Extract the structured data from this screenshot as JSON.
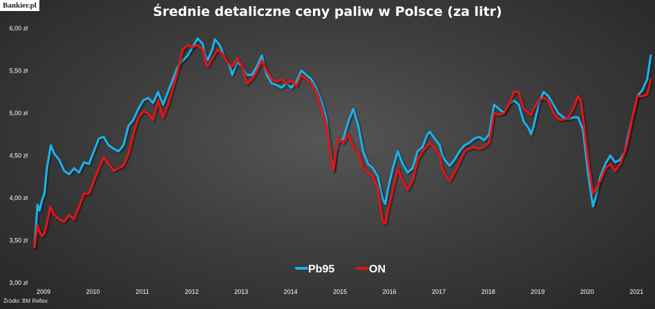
{
  "logo_text": "Bankier.pl",
  "title": "Średnie detaliczne ceny paliw w Polsce (za litr)",
  "source": "Źródło: BM Reflex",
  "colors": {
    "Pb95": "#1ab0ea",
    "ON": "#e01414"
  },
  "chart_data": {
    "type": "line",
    "title": "Średnie detaliczne ceny paliw w Polsce (za litr)",
    "xlabel": "",
    "ylabel": "",
    "xlim": [
      2009,
      2021.5
    ],
    "ylim": [
      3.0,
      6.0
    ],
    "y_ticks": [
      "3,00 zł",
      "3,50 zł",
      "4,00 zł",
      "4,50 zł",
      "5,00 zł",
      "5,50 zł",
      "6,00 zł"
    ],
    "x_ticks": [
      "2009",
      "2010",
      "2011",
      "2012",
      "2013",
      "2014",
      "2015",
      "2016",
      "2017",
      "2018",
      "2019",
      "2020",
      "2021"
    ],
    "grid": false,
    "legend": "bottom-center",
    "series": [
      {
        "name": "Pb95",
        "points": [
          [
            2009.0,
            3.42
          ],
          [
            2009.06,
            3.92
          ],
          [
            2009.1,
            3.85
          ],
          [
            2009.15,
            3.97
          ],
          [
            2009.2,
            4.05
          ],
          [
            2009.25,
            4.35
          ],
          [
            2009.33,
            4.62
          ],
          [
            2009.4,
            4.52
          ],
          [
            2009.5,
            4.45
          ],
          [
            2009.6,
            4.32
          ],
          [
            2009.7,
            4.28
          ],
          [
            2009.8,
            4.35
          ],
          [
            2009.9,
            4.3
          ],
          [
            2010.0,
            4.42
          ],
          [
            2010.1,
            4.4
          ],
          [
            2010.2,
            4.55
          ],
          [
            2010.3,
            4.7
          ],
          [
            2010.4,
            4.72
          ],
          [
            2010.5,
            4.62
          ],
          [
            2010.6,
            4.58
          ],
          [
            2010.7,
            4.55
          ],
          [
            2010.8,
            4.62
          ],
          [
            2010.9,
            4.85
          ],
          [
            2011.0,
            4.92
          ],
          [
            2011.1,
            5.05
          ],
          [
            2011.2,
            5.15
          ],
          [
            2011.3,
            5.18
          ],
          [
            2011.4,
            5.12
          ],
          [
            2011.5,
            5.25
          ],
          [
            2011.6,
            5.1
          ],
          [
            2011.7,
            5.25
          ],
          [
            2011.8,
            5.4
          ],
          [
            2011.9,
            5.55
          ],
          [
            2012.0,
            5.62
          ],
          [
            2012.1,
            5.68
          ],
          [
            2012.2,
            5.78
          ],
          [
            2012.3,
            5.88
          ],
          [
            2012.4,
            5.82
          ],
          [
            2012.45,
            5.7
          ],
          [
            2012.5,
            5.62
          ],
          [
            2012.6,
            5.75
          ],
          [
            2012.65,
            5.87
          ],
          [
            2012.75,
            5.8
          ],
          [
            2012.85,
            5.65
          ],
          [
            2012.95,
            5.55
          ],
          [
            2013.0,
            5.45
          ],
          [
            2013.1,
            5.6
          ],
          [
            2013.2,
            5.55
          ],
          [
            2013.3,
            5.45
          ],
          [
            2013.4,
            5.45
          ],
          [
            2013.5,
            5.55
          ],
          [
            2013.6,
            5.68
          ],
          [
            2013.7,
            5.45
          ],
          [
            2013.8,
            5.35
          ],
          [
            2013.9,
            5.33
          ],
          [
            2014.0,
            5.3
          ],
          [
            2014.1,
            5.35
          ],
          [
            2014.2,
            5.3
          ],
          [
            2014.3,
            5.37
          ],
          [
            2014.4,
            5.5
          ],
          [
            2014.5,
            5.45
          ],
          [
            2014.6,
            5.4
          ],
          [
            2014.7,
            5.3
          ],
          [
            2014.8,
            5.15
          ],
          [
            2014.9,
            4.95
          ],
          [
            2015.0,
            4.5
          ],
          [
            2015.05,
            4.32
          ],
          [
            2015.1,
            4.55
          ],
          [
            2015.15,
            4.65
          ],
          [
            2015.25,
            4.7
          ],
          [
            2015.35,
            4.9
          ],
          [
            2015.45,
            5.05
          ],
          [
            2015.55,
            4.85
          ],
          [
            2015.65,
            4.55
          ],
          [
            2015.75,
            4.4
          ],
          [
            2015.85,
            4.35
          ],
          [
            2015.95,
            4.25
          ],
          [
            2016.0,
            4.1
          ],
          [
            2016.05,
            3.98
          ],
          [
            2016.1,
            3.93
          ],
          [
            2016.15,
            4.1
          ],
          [
            2016.25,
            4.35
          ],
          [
            2016.35,
            4.55
          ],
          [
            2016.45,
            4.4
          ],
          [
            2016.55,
            4.3
          ],
          [
            2016.65,
            4.35
          ],
          [
            2016.75,
            4.55
          ],
          [
            2016.85,
            4.6
          ],
          [
            2016.95,
            4.75
          ],
          [
            2017.0,
            4.78
          ],
          [
            2017.1,
            4.7
          ],
          [
            2017.2,
            4.62
          ],
          [
            2017.25,
            4.5
          ],
          [
            2017.3,
            4.45
          ],
          [
            2017.4,
            4.38
          ],
          [
            2017.5,
            4.45
          ],
          [
            2017.6,
            4.55
          ],
          [
            2017.7,
            4.62
          ],
          [
            2017.8,
            4.65
          ],
          [
            2017.9,
            4.7
          ],
          [
            2018.0,
            4.72
          ],
          [
            2018.1,
            4.68
          ],
          [
            2018.2,
            4.75
          ],
          [
            2018.3,
            5.1
          ],
          [
            2018.4,
            5.05
          ],
          [
            2018.5,
            5.0
          ],
          [
            2018.6,
            5.1
          ],
          [
            2018.7,
            5.15
          ],
          [
            2018.8,
            5.1
          ],
          [
            2018.9,
            4.9
          ],
          [
            2019.0,
            4.82
          ],
          [
            2019.05,
            4.75
          ],
          [
            2019.1,
            4.85
          ],
          [
            2019.2,
            5.1
          ],
          [
            2019.3,
            5.25
          ],
          [
            2019.4,
            5.2
          ],
          [
            2019.5,
            5.1
          ],
          [
            2019.6,
            5.0
          ],
          [
            2019.7,
            4.95
          ],
          [
            2019.8,
            4.93
          ],
          [
            2019.9,
            4.95
          ],
          [
            2020.0,
            4.95
          ],
          [
            2020.1,
            4.8
          ],
          [
            2020.2,
            4.3
          ],
          [
            2020.3,
            3.9
          ],
          [
            2020.35,
            4.0
          ],
          [
            2020.45,
            4.25
          ],
          [
            2020.55,
            4.4
          ],
          [
            2020.65,
            4.5
          ],
          [
            2020.75,
            4.42
          ],
          [
            2020.85,
            4.45
          ],
          [
            2020.95,
            4.55
          ],
          [
            2021.0,
            4.7
          ],
          [
            2021.1,
            4.95
          ],
          [
            2021.2,
            5.2
          ],
          [
            2021.3,
            5.27
          ],
          [
            2021.4,
            5.4
          ],
          [
            2021.47,
            5.68
          ]
        ]
      },
      {
        "name": "ON",
        "points": [
          [
            2009.0,
            3.42
          ],
          [
            2009.06,
            3.68
          ],
          [
            2009.1,
            3.6
          ],
          [
            2009.15,
            3.55
          ],
          [
            2009.2,
            3.58
          ],
          [
            2009.25,
            3.7
          ],
          [
            2009.32,
            3.9
          ],
          [
            2009.4,
            3.8
          ],
          [
            2009.5,
            3.75
          ],
          [
            2009.6,
            3.72
          ],
          [
            2009.7,
            3.8
          ],
          [
            2009.8,
            3.75
          ],
          [
            2009.9,
            3.9
          ],
          [
            2010.0,
            4.05
          ],
          [
            2010.1,
            4.05
          ],
          [
            2010.2,
            4.2
          ],
          [
            2010.3,
            4.35
          ],
          [
            2010.4,
            4.48
          ],
          [
            2010.5,
            4.4
          ],
          [
            2010.6,
            4.32
          ],
          [
            2010.7,
            4.35
          ],
          [
            2010.8,
            4.38
          ],
          [
            2010.9,
            4.52
          ],
          [
            2011.0,
            4.75
          ],
          [
            2011.1,
            4.95
          ],
          [
            2011.2,
            5.02
          ],
          [
            2011.3,
            5.0
          ],
          [
            2011.4,
            4.92
          ],
          [
            2011.5,
            5.15
          ],
          [
            2011.6,
            4.95
          ],
          [
            2011.7,
            5.1
          ],
          [
            2011.8,
            5.3
          ],
          [
            2011.9,
            5.5
          ],
          [
            2012.0,
            5.75
          ],
          [
            2012.1,
            5.8
          ],
          [
            2012.2,
            5.78
          ],
          [
            2012.3,
            5.8
          ],
          [
            2012.4,
            5.75
          ],
          [
            2012.45,
            5.62
          ],
          [
            2012.5,
            5.55
          ],
          [
            2012.6,
            5.65
          ],
          [
            2012.7,
            5.75
          ],
          [
            2012.8,
            5.7
          ],
          [
            2012.9,
            5.6
          ],
          [
            2013.0,
            5.55
          ],
          [
            2013.1,
            5.65
          ],
          [
            2013.2,
            5.55
          ],
          [
            2013.3,
            5.35
          ],
          [
            2013.4,
            5.4
          ],
          [
            2013.5,
            5.5
          ],
          [
            2013.6,
            5.62
          ],
          [
            2013.7,
            5.5
          ],
          [
            2013.8,
            5.4
          ],
          [
            2013.9,
            5.37
          ],
          [
            2014.0,
            5.4
          ],
          [
            2014.1,
            5.35
          ],
          [
            2014.2,
            5.38
          ],
          [
            2014.3,
            5.32
          ],
          [
            2014.4,
            5.45
          ],
          [
            2014.5,
            5.4
          ],
          [
            2014.6,
            5.35
          ],
          [
            2014.7,
            5.25
          ],
          [
            2014.8,
            5.05
          ],
          [
            2014.9,
            4.85
          ],
          [
            2015.0,
            4.45
          ],
          [
            2015.05,
            4.32
          ],
          [
            2015.1,
            4.6
          ],
          [
            2015.15,
            4.7
          ],
          [
            2015.25,
            4.65
          ],
          [
            2015.35,
            4.75
          ],
          [
            2015.45,
            4.6
          ],
          [
            2015.55,
            4.55
          ],
          [
            2015.65,
            4.35
          ],
          [
            2015.75,
            4.3
          ],
          [
            2015.85,
            4.25
          ],
          [
            2015.95,
            4.1
          ],
          [
            2016.0,
            3.9
          ],
          [
            2016.05,
            3.72
          ],
          [
            2016.1,
            3.7
          ],
          [
            2016.15,
            3.85
          ],
          [
            2016.25,
            4.1
          ],
          [
            2016.35,
            4.35
          ],
          [
            2016.45,
            4.2
          ],
          [
            2016.55,
            4.1
          ],
          [
            2016.65,
            4.2
          ],
          [
            2016.75,
            4.45
          ],
          [
            2016.85,
            4.55
          ],
          [
            2016.95,
            4.62
          ],
          [
            2017.0,
            4.65
          ],
          [
            2017.1,
            4.58
          ],
          [
            2017.2,
            4.5
          ],
          [
            2017.25,
            4.35
          ],
          [
            2017.3,
            4.28
          ],
          [
            2017.4,
            4.2
          ],
          [
            2017.5,
            4.3
          ],
          [
            2017.6,
            4.42
          ],
          [
            2017.7,
            4.55
          ],
          [
            2017.8,
            4.58
          ],
          [
            2017.9,
            4.6
          ],
          [
            2018.0,
            4.58
          ],
          [
            2018.1,
            4.6
          ],
          [
            2018.2,
            4.65
          ],
          [
            2018.3,
            5.0
          ],
          [
            2018.4,
            4.98
          ],
          [
            2018.5,
            5.0
          ],
          [
            2018.6,
            5.1
          ],
          [
            2018.7,
            5.25
          ],
          [
            2018.8,
            5.25
          ],
          [
            2018.9,
            5.05
          ],
          [
            2019.0,
            5.0
          ],
          [
            2019.05,
            4.98
          ],
          [
            2019.1,
            5.05
          ],
          [
            2019.2,
            5.15
          ],
          [
            2019.3,
            5.18
          ],
          [
            2019.4,
            5.15
          ],
          [
            2019.5,
            5.0
          ],
          [
            2019.6,
            4.93
          ],
          [
            2019.7,
            4.92
          ],
          [
            2019.8,
            4.95
          ],
          [
            2019.9,
            5.05
          ],
          [
            2020.0,
            5.2
          ],
          [
            2020.05,
            5.15
          ],
          [
            2020.1,
            4.95
          ],
          [
            2020.2,
            4.45
          ],
          [
            2020.3,
            4.05
          ],
          [
            2020.35,
            4.1
          ],
          [
            2020.45,
            4.2
          ],
          [
            2020.55,
            4.35
          ],
          [
            2020.65,
            4.4
          ],
          [
            2020.75,
            4.32
          ],
          [
            2020.85,
            4.4
          ],
          [
            2020.95,
            4.55
          ],
          [
            2021.0,
            4.65
          ],
          [
            2021.1,
            4.95
          ],
          [
            2021.2,
            5.2
          ],
          [
            2021.3,
            5.2
          ],
          [
            2021.4,
            5.22
          ],
          [
            2021.47,
            5.4
          ]
        ]
      }
    ]
  }
}
